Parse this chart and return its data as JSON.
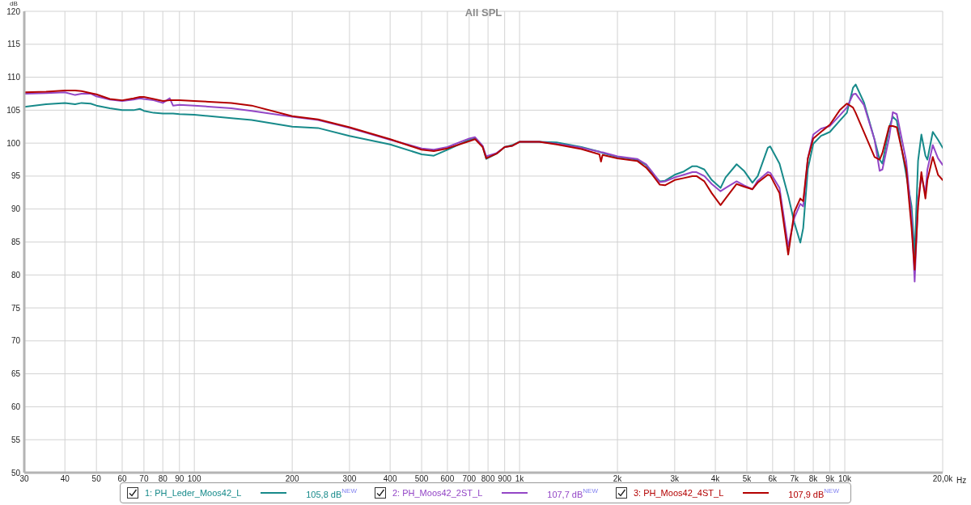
{
  "chart_data": {
    "type": "line",
    "title": "All SPL",
    "xlabel": "Hz",
    "ylabel": "dB",
    "log": "x",
    "grid": true,
    "legend": "bottom",
    "xlim": [
      30,
      20000
    ],
    "ylim": [
      50,
      120
    ],
    "xticks": [
      30,
      40,
      50,
      60,
      70,
      80,
      90,
      100,
      200,
      300,
      400,
      500,
      600,
      700,
      800,
      900,
      {
        "value": 1000,
        "label": "1k"
      },
      {
        "value": 2000,
        "label": "2k"
      },
      {
        "value": 3000,
        "label": "3k"
      },
      {
        "value": 4000,
        "label": "4k"
      },
      {
        "value": 5000,
        "label": "5k"
      },
      {
        "value": 6000,
        "label": "6k"
      },
      {
        "value": 7000,
        "label": "7k"
      },
      {
        "value": 8000,
        "label": "8k"
      },
      {
        "value": 9000,
        "label": "9k"
      },
      {
        "value": 10000,
        "label": "10k"
      },
      {
        "value": 20000,
        "label": "20,0k"
      }
    ],
    "yticks": [
      50,
      55,
      60,
      65,
      70,
      75,
      80,
      85,
      90,
      95,
      100,
      105,
      110,
      115,
      120
    ],
    "x": [
      30,
      35,
      40,
      43,
      45,
      48,
      50,
      55,
      60,
      65,
      68,
      70,
      75,
      80,
      84,
      86,
      90,
      100,
      130,
      150,
      200,
      240,
      300,
      400,
      500,
      545,
      600,
      700,
      730,
      770,
      790,
      850,
      900,
      950,
      1000,
      1150,
      1300,
      1550,
      1760,
      1780,
      1800,
      2000,
      2300,
      2450,
      2550,
      2700,
      2800,
      3000,
      3200,
      3400,
      3500,
      3700,
      3900,
      4150,
      4300,
      4650,
      4900,
      5200,
      5400,
      5800,
      5900,
      6300,
      6700,
      7000,
      7300,
      7450,
      7700,
      8000,
      8450,
      9000,
      9650,
      10150,
      10600,
      10800,
      11450,
      12350,
      12800,
      13050,
      13700,
      14050,
      14450,
      15450,
      16050,
      16400,
      16800,
      17200,
      17700,
      17950,
      18650,
      19350,
      20000
    ],
    "series": [
      {
        "name": "1: PH_Leder_Moos42_L",
        "color": "#178a8a",
        "values": [
          105.5,
          105.9,
          106.1,
          105.9,
          106.1,
          106.0,
          105.7,
          105.3,
          105.0,
          105.0,
          105.2,
          104.9,
          104.6,
          104.5,
          104.5,
          104.5,
          104.4,
          104.3,
          103.8,
          103.5,
          102.5,
          102.3,
          101.1,
          99.8,
          98.3,
          98.1,
          99.0,
          100.5,
          100.7,
          99.5,
          97.6,
          98.4,
          99.4,
          99.7,
          100.2,
          100.2,
          100.1,
          99.4,
          98.7,
          98.6,
          98.5,
          97.9,
          97.5,
          96.7,
          95.5,
          94.2,
          94.3,
          95.2,
          95.7,
          96.5,
          96.5,
          96.0,
          94.4,
          93.2,
          94.8,
          96.8,
          95.8,
          94.0,
          95.0,
          99.3,
          99.5,
          96.9,
          92.0,
          87.9,
          84.9,
          87.1,
          96.1,
          99.9,
          101.1,
          101.7,
          103.4,
          104.6,
          108.4,
          108.9,
          106.2,
          100.5,
          97.5,
          96.9,
          102.4,
          104.0,
          103.4,
          95.2,
          90.4,
          83.0,
          97.3,
          101.3,
          98.1,
          97.5,
          101.7,
          100.5,
          99.3
        ]
      },
      {
        "name": "2: PH_Moos42_2ST_L",
        "color": "#9346c6",
        "values": [
          107.5,
          107.6,
          107.7,
          107.3,
          107.5,
          107.5,
          107.1,
          106.6,
          106.4,
          106.6,
          106.8,
          106.7,
          106.5,
          106.1,
          106.8,
          105.7,
          105.8,
          105.7,
          105.3,
          104.9,
          104.0,
          103.5,
          102.3,
          100.5,
          99.2,
          99.0,
          99.4,
          100.7,
          100.9,
          99.6,
          98.0,
          98.5,
          99.4,
          99.6,
          100.2,
          100.2,
          99.9,
          99.3,
          98.7,
          98.6,
          98.6,
          98.0,
          97.6,
          96.8,
          95.7,
          94.1,
          94.2,
          94.8,
          95.2,
          95.6,
          95.6,
          95.0,
          93.8,
          92.7,
          93.2,
          94.2,
          93.6,
          93.0,
          94.3,
          95.6,
          95.5,
          93.2,
          84.3,
          88.7,
          90.8,
          90.4,
          97.7,
          101.3,
          102.2,
          102.6,
          104.2,
          105.4,
          107.4,
          107.5,
          105.8,
          100.5,
          95.8,
          96.0,
          100.9,
          104.7,
          104.4,
          97.3,
          88.7,
          79.0,
          91.2,
          95.0,
          92.4,
          96.0,
          99.7,
          97.7,
          96.7
        ]
      },
      {
        "name": "3: PH_Moos42_4ST_L",
        "color": "#b30000",
        "values": [
          107.7,
          107.8,
          108.0,
          108.0,
          107.9,
          107.6,
          107.4,
          106.7,
          106.5,
          106.8,
          107.0,
          107.0,
          106.7,
          106.4,
          106.5,
          106.5,
          106.5,
          106.4,
          106.1,
          105.7,
          104.1,
          103.6,
          102.4,
          100.6,
          99.0,
          98.8,
          99.2,
          100.3,
          100.6,
          99.4,
          97.7,
          98.4,
          99.4,
          99.6,
          100.2,
          100.2,
          99.8,
          99.1,
          98.3,
          97.2,
          98.2,
          97.7,
          97.3,
          96.3,
          95.3,
          93.7,
          93.6,
          94.4,
          94.7,
          95.0,
          95.0,
          94.2,
          92.4,
          90.6,
          91.6,
          93.8,
          93.4,
          93.0,
          94.0,
          95.2,
          95.1,
          92.4,
          83.1,
          89.6,
          91.6,
          91.2,
          97.7,
          100.7,
          101.7,
          102.8,
          105.0,
          106.0,
          105.4,
          104.6,
          101.7,
          97.9,
          97.5,
          98.5,
          102.6,
          102.6,
          102.4,
          96.0,
          87.1,
          80.8,
          90.4,
          95.6,
          91.6,
          94.4,
          97.9,
          95.2,
          94.4
        ]
      }
    ],
    "annotations": [
      "105,8 dB$^{NEW}$",
      "107,7 dB$^{NEW}$",
      "107,9 dB$^{NEW}$"
    ]
  }
}
